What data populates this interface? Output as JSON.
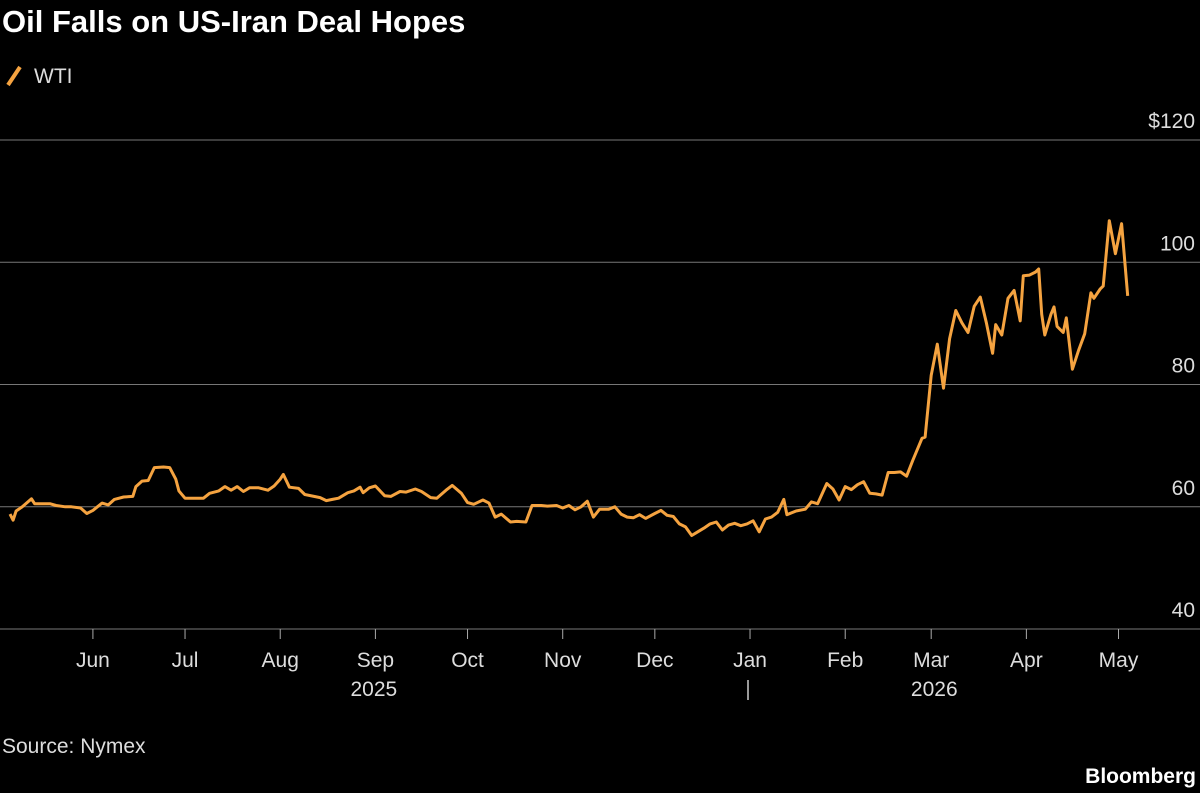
{
  "chart_data": {
    "type": "line",
    "title": "Oil Falls on US-Iran Deal Hopes",
    "source": "Source: Nymex",
    "brand": "Bloomberg",
    "x_group_labels": [
      "2025",
      "2026"
    ],
    "x": [
      0,
      1,
      2,
      4,
      7,
      8,
      10,
      13,
      15,
      18,
      20,
      23,
      25,
      27,
      30,
      32,
      34,
      37,
      40,
      41,
      43,
      45,
      47,
      50,
      52,
      54,
      55,
      57,
      60,
      63,
      65,
      68,
      70,
      72,
      74,
      76,
      78,
      81,
      84,
      86,
      88,
      89,
      91,
      94,
      96,
      99,
      101,
      103,
      105,
      107,
      110,
      112,
      114,
      115,
      117,
      119,
      122,
      124,
      127,
      129,
      132,
      134,
      137,
      139,
      142,
      144,
      147,
      149,
      151,
      154,
      156,
      158,
      160,
      163,
      165,
      168,
      170,
      173,
      175,
      178,
      180,
      182,
      184,
      186,
      188,
      190,
      192,
      195,
      197,
      199,
      201,
      203,
      205,
      207,
      210,
      212,
      214,
      216,
      218,
      220,
      222,
      224,
      226,
      228,
      230,
      232,
      234,
      236,
      238,
      240,
      242,
      244,
      246,
      248,
      250,
      252,
      253,
      256,
      259,
      261,
      263,
      266,
      268,
      270,
      272,
      274,
      276,
      278,
      280,
      282,
      284,
      286,
      288,
      290,
      292,
      294,
      297,
      298,
      300,
      302,
      304,
      306,
      308,
      310,
      312,
      314,
      316,
      318,
      320,
      321,
      323,
      325,
      327,
      329,
      330,
      332,
      334,
      335,
      336,
      337,
      339,
      340,
      341,
      343,
      344,
      346,
      348,
      350,
      352,
      353,
      355,
      356,
      358,
      360,
      362,
      364
    ],
    "series": [
      {
        "name": "WTI",
        "color": "#f5a340",
        "values": [
          58.8,
          57.8,
          59.3,
          60,
          61.3,
          60.5,
          60.5,
          60.5,
          60.2,
          60,
          60,
          59.8,
          58.9,
          59.4,
          60.6,
          60.3,
          61.2,
          61.6,
          61.7,
          63.3,
          64.2,
          64.3,
          66.4,
          66.5,
          66.4,
          64.5,
          62.6,
          61.4,
          61.4,
          61.4,
          62.2,
          62.6,
          63.3,
          62.7,
          63.3,
          62.5,
          63.1,
          63.1,
          62.7,
          63.4,
          64.5,
          65.3,
          63.2,
          63,
          62,
          61.7,
          61.5,
          61,
          61.2,
          61.4,
          62.3,
          62.6,
          63.2,
          62.3,
          63.1,
          63.4,
          61.8,
          61.7,
          62.5,
          62.4,
          62.9,
          62.5,
          61.5,
          61.4,
          62.7,
          63.5,
          62.2,
          60.7,
          60.4,
          61.1,
          60.6,
          58.3,
          58.8,
          57.5,
          57.6,
          57.5,
          60.2,
          60.2,
          60.1,
          60.2,
          59.8,
          60.2,
          59.5,
          60,
          60.9,
          58.3,
          59.6,
          59.6,
          60,
          58.8,
          58.3,
          58.2,
          58.7,
          58.1,
          58.9,
          59.4,
          58.6,
          58.4,
          57.2,
          56.7,
          55.3,
          55.9,
          56.5,
          57.2,
          57.5,
          56.2,
          57,
          57.3,
          56.9,
          57.2,
          57.7,
          55.9,
          58,
          58.3,
          59.1,
          61.2,
          58.7,
          59.3,
          59.6,
          60.8,
          60.5,
          63.8,
          62.9,
          61.1,
          63.3,
          62.8,
          63.6,
          64.1,
          62.2,
          62.1,
          61.9,
          65.6,
          65.6,
          65.7,
          65,
          67.6,
          71.2,
          71.4,
          81.5,
          86.6,
          79.4,
          87.5,
          92.1,
          90.1,
          88.5,
          92.8,
          94.3,
          90,
          85.1,
          89.8,
          88.1,
          94.1,
          95.4,
          90.4,
          97.8,
          97.9,
          98.4,
          98.9,
          91.5,
          88.1,
          91.5,
          92.7,
          89.5,
          88.5,
          90.9,
          82.5,
          85.6,
          88.3,
          95,
          94.1,
          95.6,
          96.1,
          106.8,
          101.4,
          106.3,
          94.5
        ]
      }
    ],
    "xlim": [
      0,
      368
    ],
    "xticks": [
      {
        "value": 27,
        "label": "Jun"
      },
      {
        "value": 57,
        "label": "Jul"
      },
      {
        "value": 88,
        "label": "Aug"
      },
      {
        "value": 119,
        "label": "Sep"
      },
      {
        "value": 149,
        "label": "Oct"
      },
      {
        "value": 180,
        "label": "Nov"
      },
      {
        "value": 210,
        "label": "Dec"
      },
      {
        "value": 241,
        "label": "Jan"
      },
      {
        "value": 272,
        "label": "Feb"
      },
      {
        "value": 300,
        "label": "Mar"
      },
      {
        "value": 331,
        "label": "Apr"
      },
      {
        "value": 361,
        "label": "May"
      }
    ],
    "ylim": [
      40,
      120
    ],
    "yticks": [
      40,
      60,
      80,
      100,
      {
        "value": 120,
        "label": "$120"
      }
    ],
    "grid": true
  }
}
